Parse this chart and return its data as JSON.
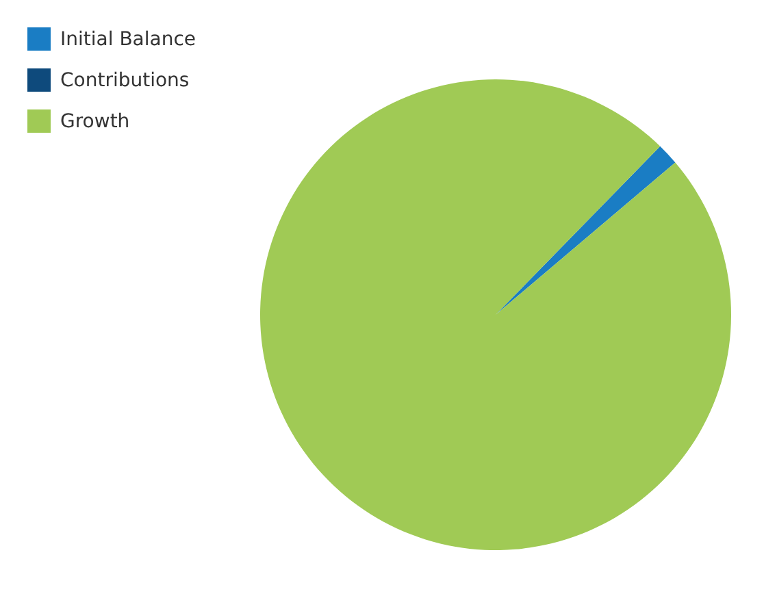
{
  "chart_data": {
    "type": "pie",
    "categories": [
      "Initial Balance",
      "Contributions",
      "Growth"
    ],
    "values": [
      1.5,
      0,
      98.5
    ],
    "colors": [
      "#1a7dc4",
      "#0e4a7c",
      "#a0ca55"
    ],
    "legend": "top left"
  }
}
